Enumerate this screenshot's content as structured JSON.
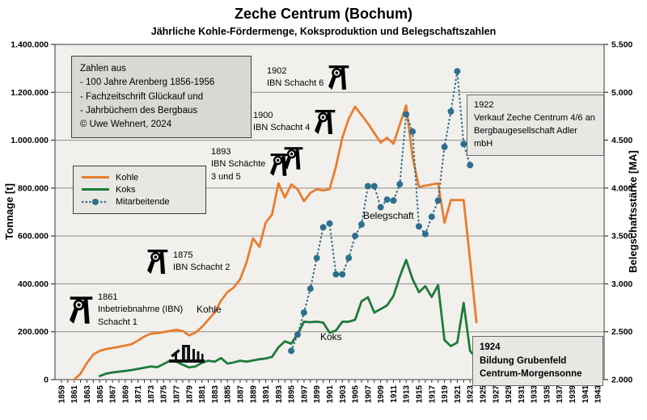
{
  "chart_data": {
    "type": "line",
    "title": "Zeche Centrum (Bochum)",
    "subtitle": "Jährliche Kohle-Fördermenge, Koksproduktion und Belegschaftszahlen",
    "x_range": [
      1859,
      1943
    ],
    "grid": true,
    "left_axis": {
      "label": "Tonnage [t]",
      "min": 0,
      "max": 1400000,
      "tick_step": 200000
    },
    "right_axis": {
      "label": "Belegschaftsstärke  [MA]",
      "min": 2000,
      "max": 5500,
      "tick_step": 500
    },
    "series": [
      {
        "name": "Kohle",
        "axis": "left",
        "style": "solid",
        "color": "#e87e2e",
        "start_year": 1861,
        "values": [
          0,
          25000,
          70000,
          105000,
          120000,
          128000,
          132000,
          137000,
          142000,
          148000,
          163000,
          180000,
          192000,
          194000,
          198000,
          203000,
          208000,
          203000,
          185000,
          196000,
          220000,
          250000,
          280000,
          330000,
          365000,
          385000,
          420000,
          490000,
          590000,
          555000,
          655000,
          690000,
          820000,
          760000,
          815000,
          795000,
          745000,
          780000,
          795000,
          790000,
          795000,
          890000,
          1010000,
          1090000,
          1140000,
          1105000,
          1070000,
          1030000,
          990000,
          1010000,
          985000,
          1065000,
          1145000,
          930000,
          805000,
          810000,
          815000,
          820000,
          655000,
          750000,
          750000,
          750000,
          500000,
          240000
        ]
      },
      {
        "name": "Koks",
        "axis": "left",
        "style": "solid",
        "color": "#1e7b3a",
        "start_year": 1865,
        "values": [
          15000,
          25000,
          30000,
          33000,
          36000,
          40000,
          45000,
          50000,
          55000,
          52000,
          65000,
          79000,
          75000,
          62000,
          51000,
          55000,
          70000,
          79000,
          75000,
          90000,
          67000,
          72000,
          79000,
          75000,
          80000,
          85000,
          88000,
          95000,
          135000,
          160000,
          150000,
          190000,
          242000,
          240000,
          242000,
          238000,
          196000,
          205000,
          242000,
          242000,
          250000,
          327000,
          344000,
          280000,
          295000,
          310000,
          349000,
          430000,
          500000,
          420000,
          365000,
          390000,
          345000,
          395000,
          165000,
          140000,
          155000,
          320000,
          120000,
          90000
        ]
      },
      {
        "name": "Mitarbeitende",
        "axis": "right",
        "style": "dotted",
        "color": "#2e6f8e",
        "start_year": 1895,
        "values": [
          2300,
          2470,
          2700,
          2950,
          3270,
          3590,
          3630,
          3100,
          3100,
          3270,
          3500,
          3620,
          4020,
          4020,
          3800,
          3880,
          3870,
          4040,
          4770,
          4590,
          3600,
          3520,
          3700,
          3870,
          4430,
          4800,
          5220,
          4460,
          4240
        ]
      }
    ]
  },
  "axes": {
    "left_label": "Tonnage [t]",
    "right_label": "Belegschaftsstärke  [MA]",
    "left_ticks": [
      {
        "value": 0,
        "label": "0"
      },
      {
        "value": 200000,
        "label": "200.000"
      },
      {
        "value": 400000,
        "label": "400.000"
      },
      {
        "value": 600000,
        "label": "600.000"
      },
      {
        "value": 800000,
        "label": "800.000"
      },
      {
        "value": 1000000,
        "label": "1.000.000"
      },
      {
        "value": 1200000,
        "label": "1.200.000"
      },
      {
        "value": 1400000,
        "label": "1.400.000"
      }
    ],
    "right_ticks": [
      {
        "value": 2000,
        "label": "2.000"
      },
      {
        "value": 2500,
        "label": "2.500"
      },
      {
        "value": 3000,
        "label": "3.000"
      },
      {
        "value": 3500,
        "label": "3.500"
      },
      {
        "value": 4000,
        "label": "4.000"
      },
      {
        "value": 4500,
        "label": "4.500"
      },
      {
        "value": 5000,
        "label": "5.000"
      },
      {
        "value": 5500,
        "label": "5.500"
      }
    ],
    "x_tick_labels": [
      "1859",
      "1861",
      "1863",
      "1865",
      "1867",
      "1869",
      "1871",
      "1873",
      "1875",
      "1877",
      "1879",
      "1881",
      "1883",
      "1885",
      "1887",
      "1889",
      "1891",
      "1893",
      "1895",
      "1897",
      "1899",
      "1901",
      "1903",
      "1905",
      "1907",
      "1909",
      "1911",
      "1913",
      "1915",
      "1917",
      "1919",
      "1921",
      "1923",
      "1925",
      "1927",
      "1929",
      "1931",
      "1933",
      "1935",
      "1937",
      "1939",
      "1941",
      "1943"
    ]
  },
  "source_box": {
    "lines": [
      "Zahlen aus",
      "- 100 Jahre Arenberg 1856-1956",
      "- Fachzeitschrift Glückauf und",
      "- Jahrbüchern des Bergbaus",
      "© Uwe Wehnert, 2024"
    ]
  },
  "legend": {
    "items": [
      {
        "label": "Kohle",
        "color": "#e87e2e",
        "style": "solid"
      },
      {
        "label": "Koks",
        "color": "#1e7b3a",
        "style": "solid"
      },
      {
        "label": "Mitarbeitende",
        "color": "#2e6f8e",
        "style": "dotted"
      }
    ]
  },
  "annotations": {
    "a1861": {
      "l1": "1861",
      "l2": "Inbetriebnahme (IBN)",
      "l3": "Schacht 1"
    },
    "a1875": {
      "l1": "1875",
      "l2": "IBN Schacht 2"
    },
    "a1893": {
      "l1": "1893",
      "l2": "IBN Schächte",
      "l3": "3 und 5"
    },
    "a1900": {
      "l1": "1900",
      "l2": "IBN Schacht 4"
    },
    "a1902": {
      "l1": "1902",
      "l2": "IBN Schacht 6"
    },
    "a1922": {
      "l1": "1922",
      "l2": "Verkauf Zeche Centrum 4/6 an",
      "l3": "Bergbaugesellschaft Adler mbH"
    },
    "a1924": {
      "l1": "1924",
      "l2": "Bildung Grubenfeld",
      "l3": "Centrum-Morgensonne"
    }
  },
  "series_labels": {
    "kohle": "Kohle",
    "koks": "Koks",
    "belegschaft": "Belegschaft"
  },
  "colors": {
    "kohle": "#e87e2e",
    "koks": "#1e7b3a",
    "mitarbeitende": "#2e6f8e",
    "grid": "#8f8d8a",
    "plot_bg": "#f2f0ed",
    "plot_border": "#595959",
    "source_box_bg": "#dad8d5",
    "note_bg": "#e9e7e4"
  }
}
